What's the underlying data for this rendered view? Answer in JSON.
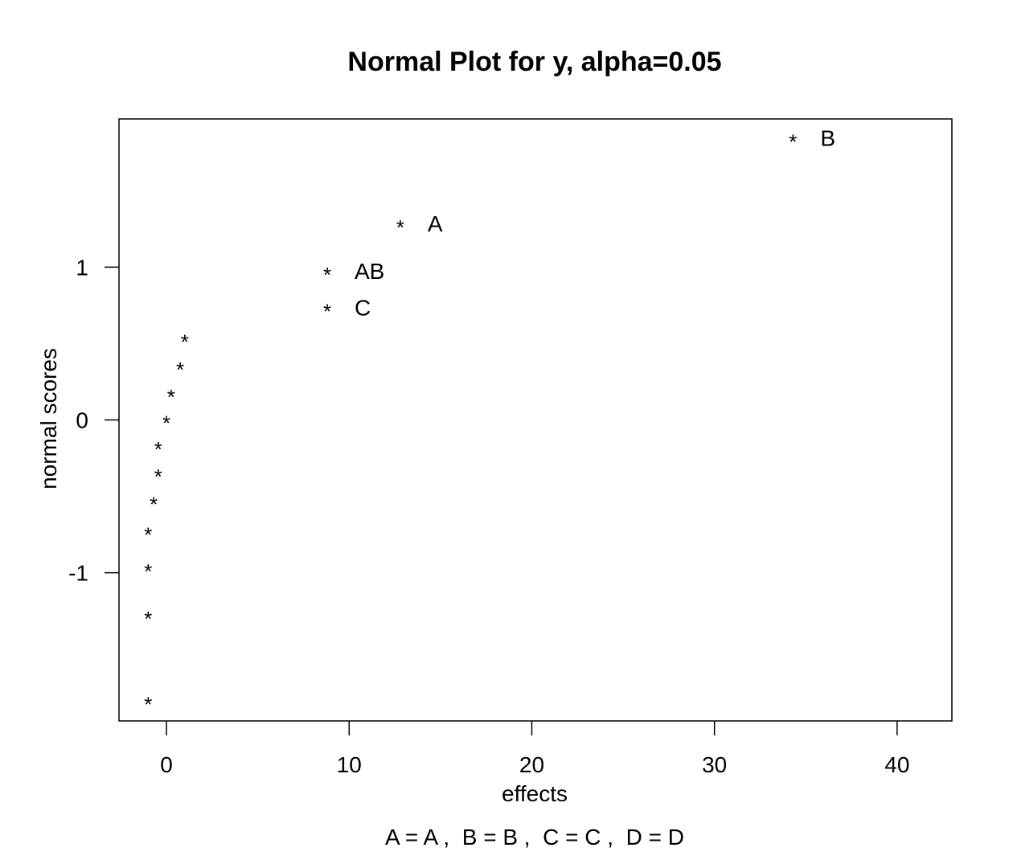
{
  "chart_data": {
    "type": "scatter",
    "title": "Normal Plot for y, alpha=0.05",
    "xlabel": "effects",
    "ylabel": "normal scores",
    "footnote": "A = A ,  B = B ,  C = C ,  D = D",
    "xlim": [
      -2.6,
      43.0
    ],
    "ylim": [
      -1.97,
      1.97
    ],
    "x_ticks": [
      {
        "value": 0,
        "label": "0"
      },
      {
        "value": 10,
        "label": "10"
      },
      {
        "value": 20,
        "label": "20"
      },
      {
        "value": 30,
        "label": "30"
      },
      {
        "value": 40,
        "label": "40"
      }
    ],
    "y_ticks": [
      {
        "value": -1,
        "label": "-1"
      },
      {
        "value": 0,
        "label": "0"
      },
      {
        "value": 1,
        "label": "1"
      }
    ],
    "grid": false,
    "marker": "*",
    "points": [
      {
        "x": -1.0,
        "y": -1.84,
        "label": ""
      },
      {
        "x": -1.0,
        "y": -1.28,
        "label": ""
      },
      {
        "x": -1.0,
        "y": -0.97,
        "label": ""
      },
      {
        "x": -1.0,
        "y": -0.73,
        "label": ""
      },
      {
        "x": -0.7,
        "y": -0.53,
        "label": ""
      },
      {
        "x": -0.45,
        "y": -0.35,
        "label": ""
      },
      {
        "x": -0.45,
        "y": -0.17,
        "label": ""
      },
      {
        "x": 0.0,
        "y": 0.0,
        "label": ""
      },
      {
        "x": 0.25,
        "y": 0.17,
        "label": ""
      },
      {
        "x": 0.75,
        "y": 0.35,
        "label": ""
      },
      {
        "x": 1.0,
        "y": 0.53,
        "label": ""
      },
      {
        "x": 8.8,
        "y": 0.73,
        "label": "C"
      },
      {
        "x": 8.8,
        "y": 0.97,
        "label": "AB"
      },
      {
        "x": 12.8,
        "y": 1.28,
        "label": "A"
      },
      {
        "x": 34.3,
        "y": 1.84,
        "label": "B"
      }
    ]
  }
}
